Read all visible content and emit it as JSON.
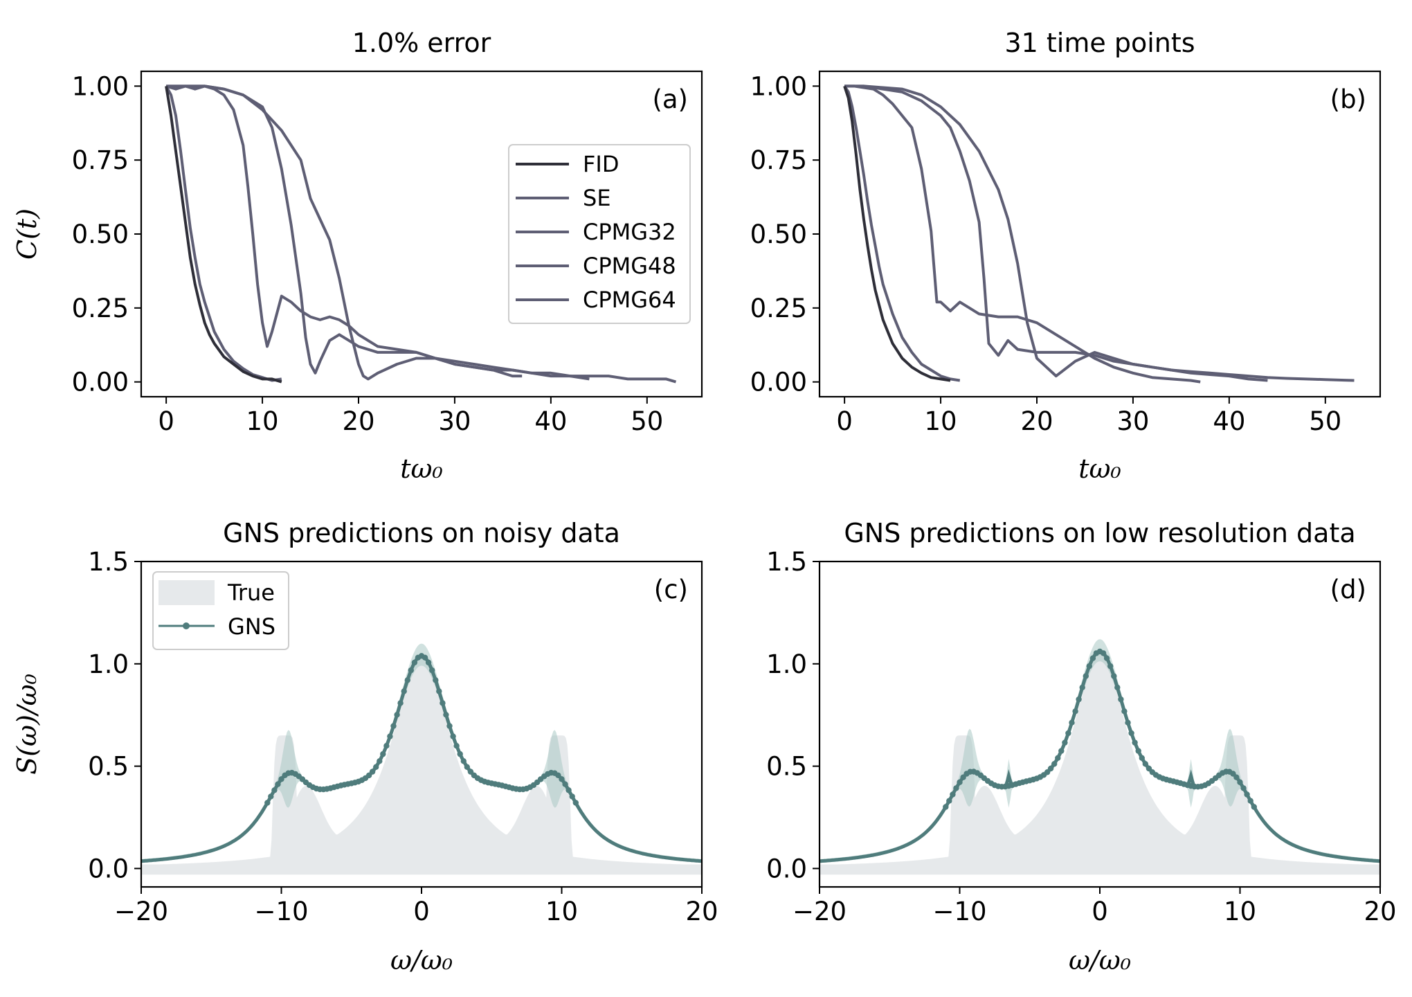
{
  "chart_data": [
    {
      "type": "line",
      "panel": "(a)",
      "title": "1.0% error",
      "xlabel": "tω₀",
      "ylabel": "C(t)",
      "xlim": [
        -2.6,
        55.7
      ],
      "ylim": [
        -0.05,
        1.05
      ],
      "xticks": [
        "0",
        "10",
        "20",
        "30",
        "40",
        "50"
      ],
      "yticks": [
        "0.00",
        "0.25",
        "0.50",
        "0.75",
        "1.00"
      ],
      "legend": {
        "placement": "center-right",
        "entries": [
          "FID",
          "SE",
          "CPMG32",
          "CPMG48",
          "CPMG64"
        ]
      },
      "colors": {
        "FID": "#2e2e38",
        "others": "#5e5e74"
      },
      "series": [
        {
          "name": "FID",
          "x": [
            0,
            0.5,
            1,
            1.5,
            2,
            2.5,
            3,
            3.5,
            4,
            4.5,
            5,
            6,
            7,
            8,
            9,
            10,
            11,
            12
          ],
          "y": [
            1.0,
            0.9,
            0.78,
            0.66,
            0.54,
            0.42,
            0.33,
            0.26,
            0.2,
            0.16,
            0.13,
            0.085,
            0.06,
            0.035,
            0.02,
            0.01,
            0.01,
            0.0
          ]
        },
        {
          "name": "SE",
          "x": [
            0,
            0.5,
            1,
            1.5,
            2,
            2.5,
            3,
            3.5,
            4,
            5,
            6,
            7,
            8,
            9,
            10,
            11,
            12
          ],
          "y": [
            1.0,
            0.97,
            0.9,
            0.78,
            0.65,
            0.52,
            0.42,
            0.33,
            0.27,
            0.17,
            0.11,
            0.07,
            0.045,
            0.025,
            0.015,
            0.005,
            0.01
          ]
        },
        {
          "name": "CPMG32",
          "x": [
            0,
            1,
            2,
            3,
            4,
            5,
            6,
            7,
            8,
            8.5,
            9,
            9.5,
            10,
            10.5,
            11,
            12,
            13,
            14,
            15,
            16,
            17,
            18,
            19,
            20,
            22,
            24,
            26,
            28,
            30,
            32,
            34,
            36,
            37
          ],
          "y": [
            1.0,
            0.99,
            1.0,
            0.99,
            1.0,
            0.99,
            0.97,
            0.92,
            0.8,
            0.66,
            0.5,
            0.33,
            0.2,
            0.12,
            0.17,
            0.29,
            0.27,
            0.24,
            0.22,
            0.21,
            0.22,
            0.21,
            0.19,
            0.16,
            0.12,
            0.11,
            0.1,
            0.08,
            0.06,
            0.05,
            0.04,
            0.02,
            0.02
          ]
        },
        {
          "name": "CPMG48",
          "x": [
            0,
            2,
            4,
            6,
            8,
            10,
            11,
            12,
            13,
            14,
            14.5,
            15,
            15.5,
            16,
            17,
            18,
            19,
            20,
            22,
            24,
            26,
            28,
            30,
            32,
            34,
            36,
            38,
            40,
            42,
            44
          ],
          "y": [
            1.0,
            1.0,
            1.0,
            0.99,
            0.97,
            0.93,
            0.86,
            0.72,
            0.53,
            0.3,
            0.15,
            0.06,
            0.03,
            0.07,
            0.14,
            0.16,
            0.14,
            0.12,
            0.1,
            0.1,
            0.1,
            0.08,
            0.06,
            0.05,
            0.04,
            0.04,
            0.03,
            0.02,
            0.02,
            0.01
          ]
        },
        {
          "name": "CPMG64",
          "x": [
            0,
            2,
            4,
            6,
            8,
            10,
            12,
            14,
            15,
            16,
            17,
            18,
            19,
            20,
            20.5,
            21,
            22,
            24,
            26,
            28,
            30,
            32,
            34,
            36,
            38,
            40,
            42,
            44,
            46,
            48,
            50,
            52,
            53
          ],
          "y": [
            1.0,
            1.0,
            1.0,
            0.99,
            0.97,
            0.92,
            0.85,
            0.75,
            0.62,
            0.55,
            0.48,
            0.35,
            0.19,
            0.06,
            0.02,
            0.01,
            0.03,
            0.06,
            0.08,
            0.08,
            0.07,
            0.06,
            0.05,
            0.04,
            0.03,
            0.03,
            0.02,
            0.02,
            0.02,
            0.01,
            0.01,
            0.01,
            0.0
          ]
        }
      ]
    },
    {
      "type": "line",
      "panel": "(b)",
      "title": "31 time points",
      "xlabel": "tω₀",
      "xlim": [
        -2.6,
        55.7
      ],
      "ylim": [
        -0.05,
        1.05
      ],
      "xticks": [
        "0",
        "10",
        "20",
        "30",
        "40",
        "50"
      ],
      "yticks": [
        "0.00",
        "0.25",
        "0.50",
        "0.75",
        "1.00"
      ],
      "series": [
        {
          "name": "FID",
          "x": [
            0,
            0.4,
            0.8,
            1.2,
            1.6,
            2,
            2.4,
            2.8,
            3.2,
            3.6,
            4,
            4.5,
            5,
            6,
            7,
            8,
            9,
            10,
            11
          ],
          "y": [
            1.0,
            0.96,
            0.88,
            0.77,
            0.65,
            0.55,
            0.46,
            0.38,
            0.31,
            0.26,
            0.21,
            0.17,
            0.13,
            0.08,
            0.05,
            0.03,
            0.015,
            0.01,
            0.005
          ]
        },
        {
          "name": "SE",
          "x": [
            0,
            0.4,
            0.8,
            1.2,
            1.6,
            2,
            2.4,
            2.8,
            3.2,
            3.6,
            4,
            5,
            6,
            7,
            8,
            9,
            10,
            11,
            12
          ],
          "y": [
            1.0,
            0.98,
            0.93,
            0.86,
            0.78,
            0.7,
            0.61,
            0.53,
            0.46,
            0.39,
            0.33,
            0.23,
            0.15,
            0.1,
            0.06,
            0.04,
            0.02,
            0.01,
            0.005
          ]
        },
        {
          "name": "CPMG32",
          "x": [
            0,
            1,
            2,
            3,
            4,
            5,
            6,
            7,
            8,
            9,
            9.6,
            10,
            11,
            12,
            14,
            16,
            18,
            20,
            22,
            24,
            26,
            28,
            30,
            32,
            34,
            36,
            37
          ],
          "y": [
            1.0,
            1.0,
            0.995,
            0.99,
            0.97,
            0.94,
            0.9,
            0.86,
            0.72,
            0.51,
            0.27,
            0.27,
            0.24,
            0.27,
            0.23,
            0.22,
            0.22,
            0.2,
            0.16,
            0.12,
            0.08,
            0.05,
            0.03,
            0.015,
            0.01,
            0.005,
            0.0
          ]
        },
        {
          "name": "CPMG48",
          "x": [
            0,
            2,
            4,
            6,
            8,
            10,
            11,
            12,
            13,
            14,
            14.5,
            15,
            16,
            17,
            18,
            20,
            22,
            24,
            26,
            28,
            30,
            32,
            34,
            36,
            38,
            40,
            42,
            44
          ],
          "y": [
            1.0,
            1.0,
            0.99,
            0.98,
            0.95,
            0.9,
            0.86,
            0.78,
            0.68,
            0.54,
            0.35,
            0.13,
            0.09,
            0.14,
            0.11,
            0.1,
            0.1,
            0.1,
            0.09,
            0.07,
            0.06,
            0.05,
            0.04,
            0.03,
            0.025,
            0.02,
            0.01,
            0.005
          ]
        },
        {
          "name": "CPMG64",
          "x": [
            0,
            2,
            4,
            6,
            8,
            10,
            12,
            14,
            16,
            17,
            18,
            19,
            20,
            21,
            22,
            24,
            26,
            28,
            30,
            32,
            34,
            36,
            38,
            40,
            42,
            44,
            46,
            48,
            50,
            52,
            53
          ],
          "y": [
            1.0,
            1.0,
            0.995,
            0.99,
            0.97,
            0.93,
            0.87,
            0.78,
            0.65,
            0.55,
            0.4,
            0.2,
            0.08,
            0.05,
            0.02,
            0.07,
            0.1,
            0.08,
            0.06,
            0.05,
            0.04,
            0.035,
            0.03,
            0.025,
            0.02,
            0.015,
            0.012,
            0.01,
            0.008,
            0.006,
            0.005
          ]
        }
      ]
    },
    {
      "type": "line",
      "panel": "(c)",
      "title": "GNS predictions on noisy data",
      "xlabel": "ω/ω₀",
      "ylabel": "S(ω)/ω₀",
      "xlim": [
        -20,
        20
      ],
      "ylim": [
        -0.09,
        1.5
      ],
      "xticks": [
        "−20",
        "−10",
        "0",
        "10",
        "20"
      ],
      "yticks": [
        "0.0",
        "0.5",
        "1.0",
        "1.5"
      ],
      "legend": {
        "placement": "upper-left",
        "entries": [
          "True",
          "GNS"
        ]
      },
      "colors": {
        "True": "#e6e9eb",
        "GNS": "#4f7c7c",
        "GNS_band": "#a9c9c4"
      },
      "gns_model": {
        "center_peak": 1.0,
        "side_peak_pos": 9.5,
        "side_peak_height": 0.43,
        "min_value": 0.2,
        "tail": 0.02
      },
      "true_model": {
        "side_peak_height": 0.65,
        "side_peak_width": [
          9.0,
          10.5
        ]
      }
    },
    {
      "type": "line",
      "panel": "(d)",
      "title": "GNS predictions on low resolution data",
      "xlabel": "ω/ω₀",
      "xlim": [
        -20,
        20
      ],
      "ylim": [
        -0.09,
        1.5
      ],
      "xticks": [
        "−20",
        "−10",
        "0",
        "10",
        "20"
      ],
      "yticks": [
        "0.0",
        "0.5",
        "1.0",
        "1.5"
      ],
      "gns_model": {
        "center_peak": 1.02,
        "side_peak_pos": 9.3,
        "side_peak_height": 0.43,
        "min_value": 0.2,
        "tail": 0.02,
        "notch_pos": 6.5
      },
      "true_model": {
        "side_peak_height": 0.65,
        "side_peak_width": [
          9.0,
          10.5
        ]
      }
    }
  ]
}
